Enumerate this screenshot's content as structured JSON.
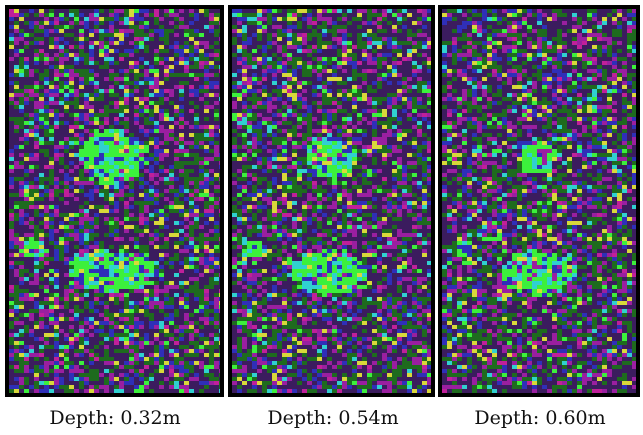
{
  "panels": [
    {
      "caption": "Depth: 0.32m"
    },
    {
      "caption": "Depth: 0.54m"
    },
    {
      "caption": "Depth: 0.60m"
    }
  ]
}
